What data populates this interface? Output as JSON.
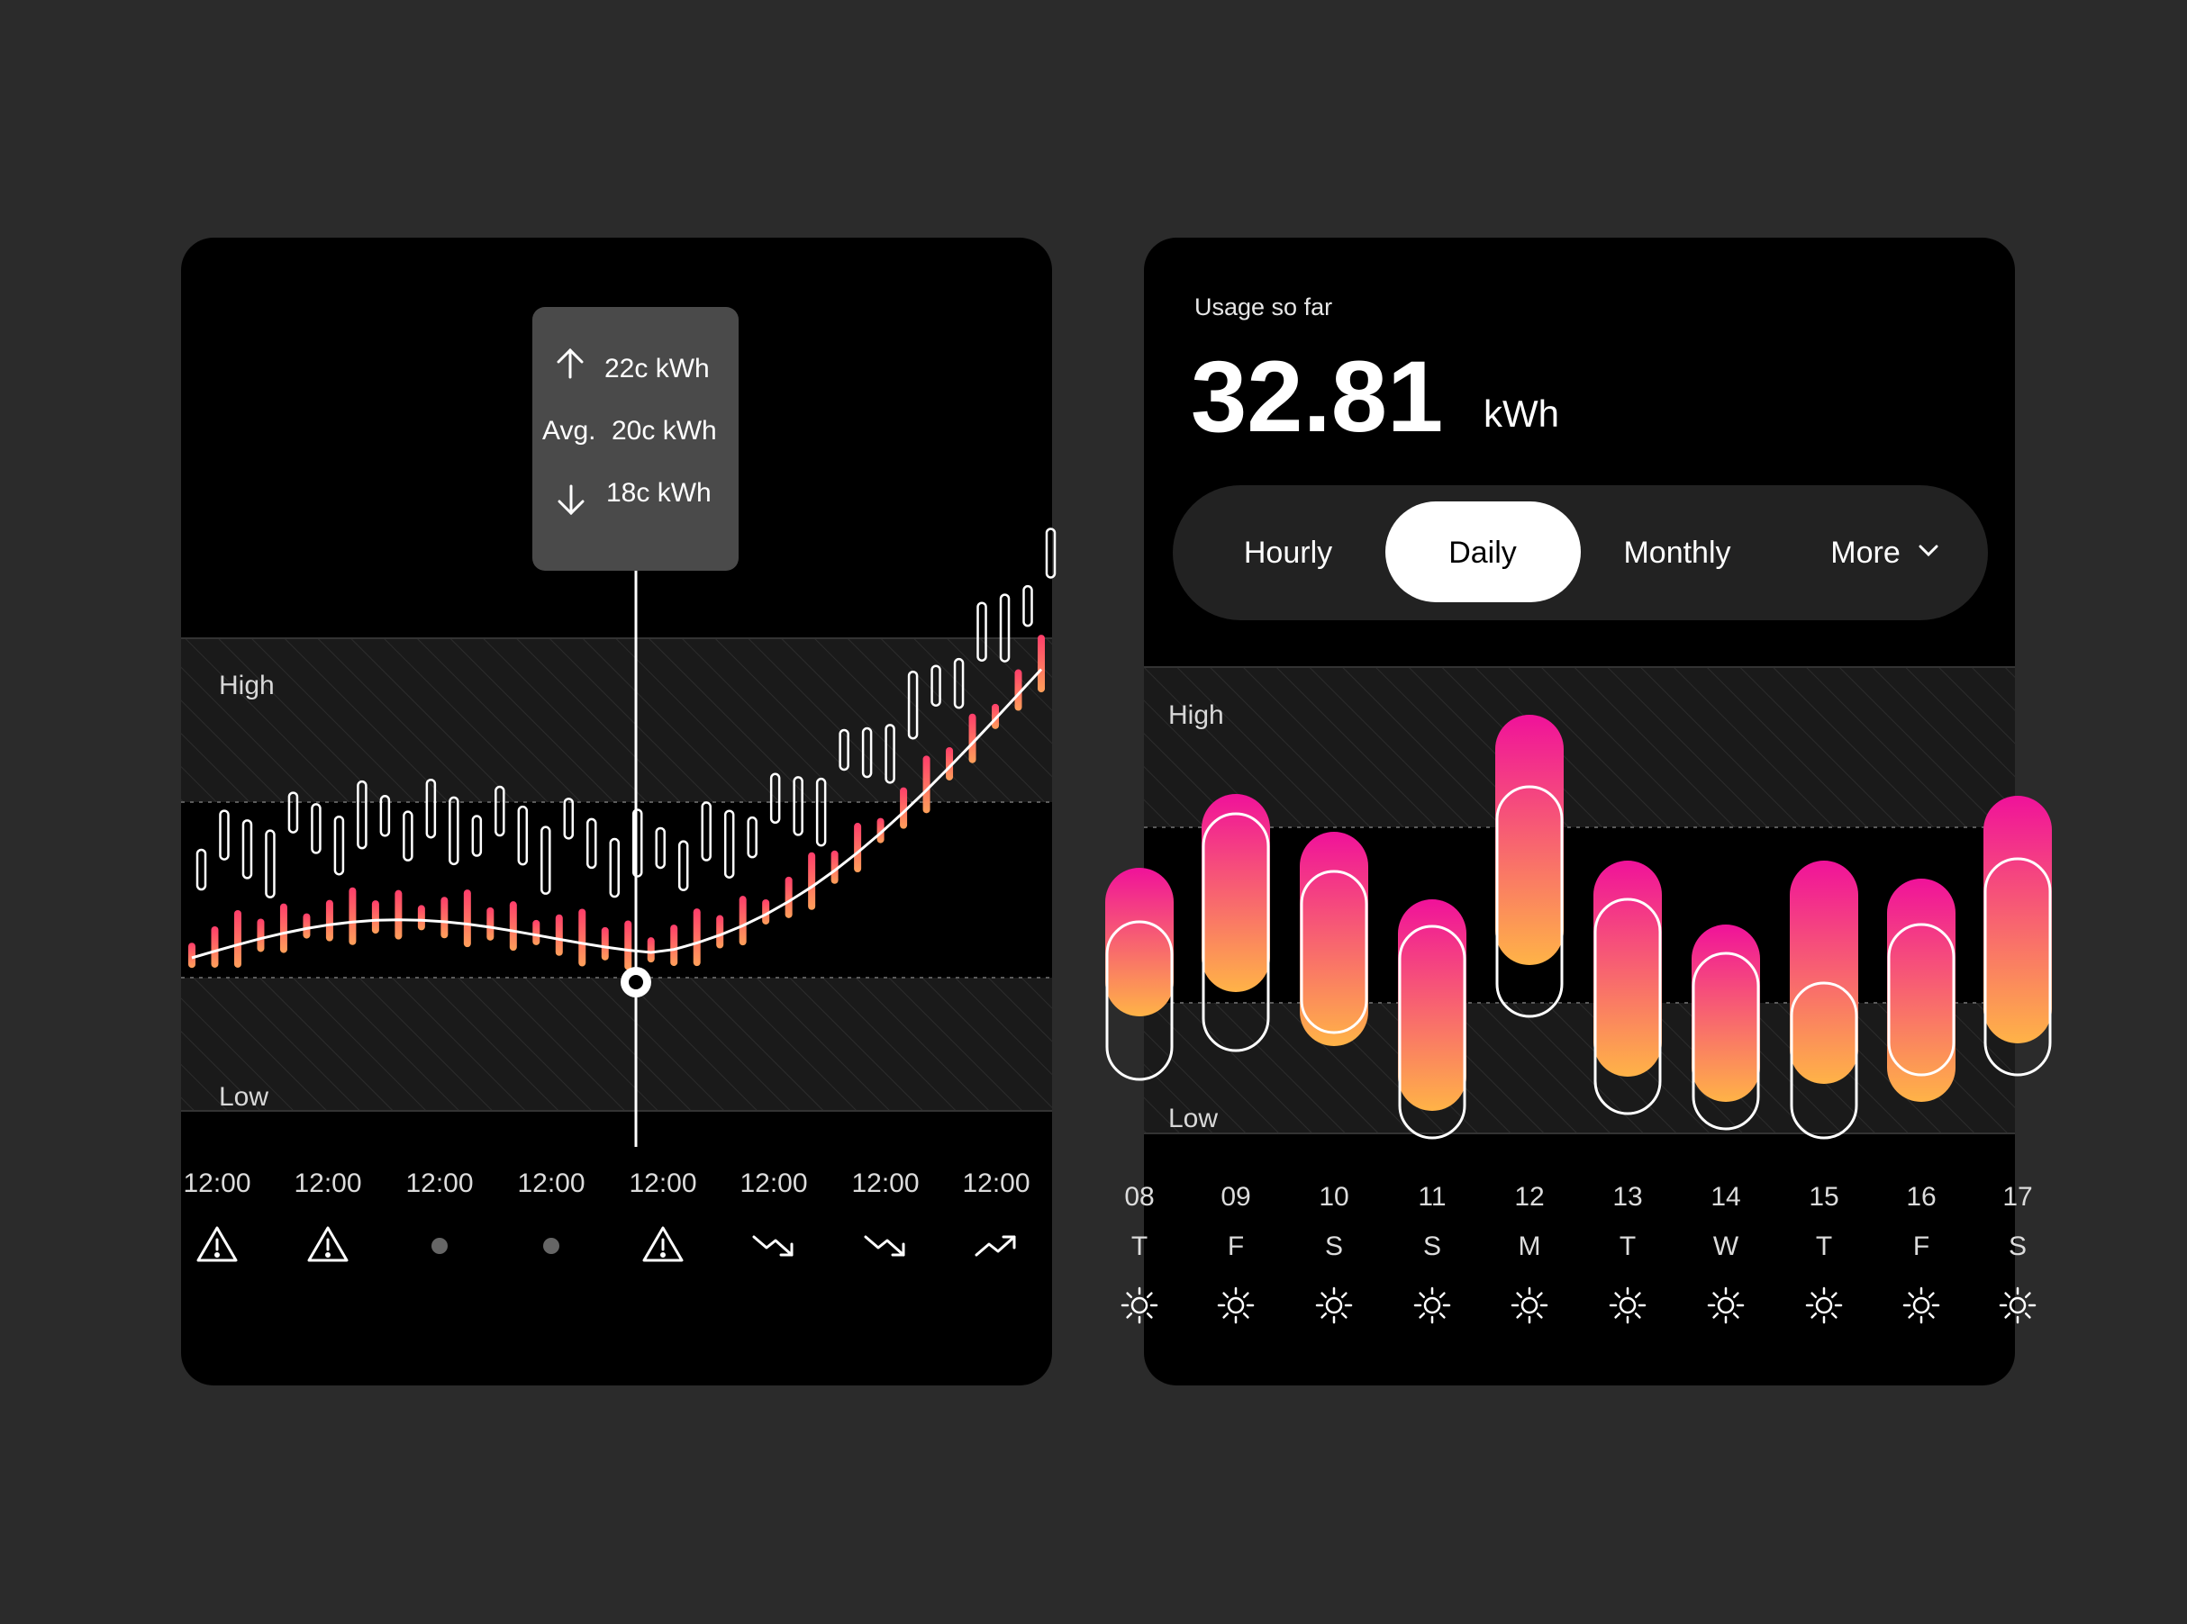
{
  "price_card": {
    "tooltip": {
      "high": "22c kWh",
      "avg_label": "Avg.",
      "avg": "20c kWh",
      "low": "18c kWh"
    },
    "zones": {
      "high": "High",
      "low": "Low"
    },
    "time_labels": [
      "12:00",
      "12:00",
      "12:00",
      "12:00",
      "12:00",
      "12:00",
      "12:00",
      "12:00"
    ],
    "status_icons": [
      "warning-icon",
      "warning-icon",
      "dot-icon",
      "dot-icon",
      "warning-icon",
      "trend-down-icon",
      "trend-down-icon",
      "trend-up-icon"
    ],
    "colors": {
      "gradient_top": "#ff3d6b",
      "gradient_bottom": "#ffa05a",
      "outline": "#ffffff"
    }
  },
  "usage_card": {
    "title": "Usage so far",
    "value": "32.81",
    "unit": "kWh",
    "tabs": [
      {
        "label": "Hourly",
        "active": false
      },
      {
        "label": "Daily",
        "active": true
      },
      {
        "label": "Monthly",
        "active": false
      },
      {
        "label": "More",
        "active": false
      }
    ],
    "zones": {
      "high": "High",
      "low": "Low"
    },
    "days": [
      {
        "date": "08",
        "weekday": "T"
      },
      {
        "date": "09",
        "weekday": "F"
      },
      {
        "date": "10",
        "weekday": "S"
      },
      {
        "date": "11",
        "weekday": "S"
      },
      {
        "date": "12",
        "weekday": "M"
      },
      {
        "date": "13",
        "weekday": "T"
      },
      {
        "date": "14",
        "weekday": "W"
      },
      {
        "date": "15",
        "weekday": "T"
      },
      {
        "date": "16",
        "weekday": "F"
      },
      {
        "date": "17",
        "weekday": "S"
      }
    ],
    "weather_icon": "sun-icon",
    "colors": {
      "gradient_top": "#f0129a",
      "gradient_bottom": "#ffb347"
    }
  }
}
